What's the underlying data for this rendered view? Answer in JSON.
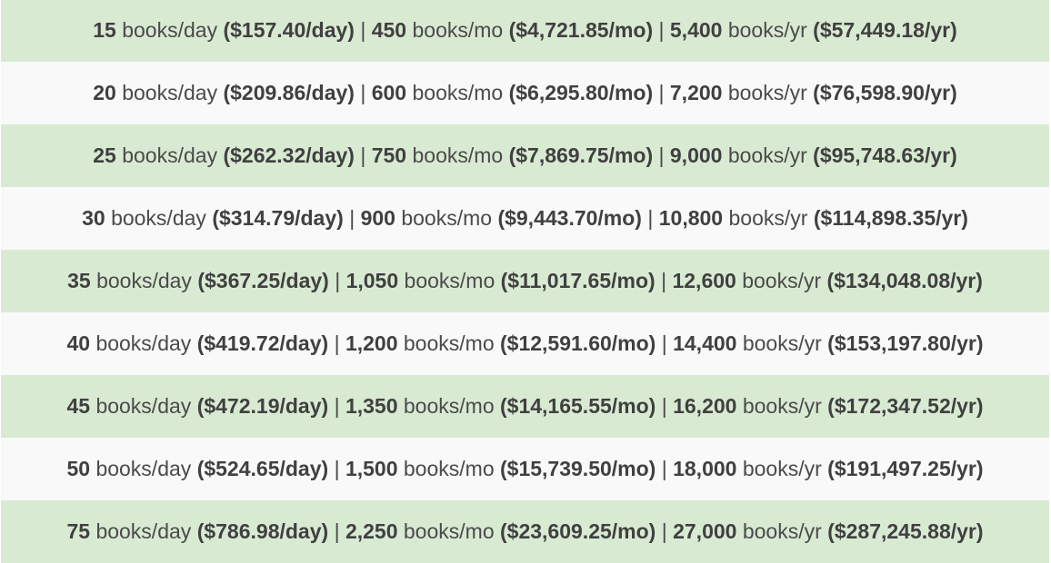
{
  "colors": {
    "green_row": "#d9ead3",
    "light_row": "#f9f9f9",
    "text": "#4a4a4a"
  },
  "rows": [
    {
      "day_count": "15",
      "day_unit": "books/day",
      "day_price": "($157.40/day)",
      "mo_count": "450",
      "mo_unit": "books/mo",
      "mo_price": "($4,721.85/mo)",
      "yr_count": "5,400",
      "yr_unit": "books/yr",
      "yr_price": "($57,449.18/yr)"
    },
    {
      "day_count": "20",
      "day_unit": "books/day",
      "day_price": "($209.86/day)",
      "mo_count": "600",
      "mo_unit": "books/mo",
      "mo_price": "($6,295.80/mo)",
      "yr_count": "7,200",
      "yr_unit": "books/yr",
      "yr_price": "($76,598.90/yr)"
    },
    {
      "day_count": "25",
      "day_unit": "books/day",
      "day_price": "($262.32/day)",
      "mo_count": "750",
      "mo_unit": "books/mo",
      "mo_price": "($7,869.75/mo)",
      "yr_count": "9,000",
      "yr_unit": "books/yr",
      "yr_price": "($95,748.63/yr)"
    },
    {
      "day_count": "30",
      "day_unit": "books/day",
      "day_price": "($314.79/day)",
      "mo_count": "900",
      "mo_unit": "books/mo",
      "mo_price": "($9,443.70/mo)",
      "yr_count": "10,800",
      "yr_unit": "books/yr",
      "yr_price": "($114,898.35/yr)"
    },
    {
      "day_count": "35",
      "day_unit": "books/day",
      "day_price": "($367.25/day)",
      "mo_count": "1,050",
      "mo_unit": "books/mo",
      "mo_price": "($11,017.65/mo)",
      "yr_count": "12,600",
      "yr_unit": "books/yr",
      "yr_price": "($134,048.08/yr)"
    },
    {
      "day_count": "40",
      "day_unit": "books/day",
      "day_price": "($419.72/day)",
      "mo_count": "1,200",
      "mo_unit": "books/mo",
      "mo_price": "($12,591.60/mo)",
      "yr_count": "14,400",
      "yr_unit": "books/yr",
      "yr_price": "($153,197.80/yr)"
    },
    {
      "day_count": "45",
      "day_unit": "books/day",
      "day_price": "($472.19/day)",
      "mo_count": "1,350",
      "mo_unit": "books/mo",
      "mo_price": "($14,165.55/mo)",
      "yr_count": "16,200",
      "yr_unit": "books/yr",
      "yr_price": "($172,347.52/yr)"
    },
    {
      "day_count": "50",
      "day_unit": "books/day",
      "day_price": "($524.65/day)",
      "mo_count": "1,500",
      "mo_unit": "books/mo",
      "mo_price": "($15,739.50/mo)",
      "yr_count": "18,000",
      "yr_unit": "books/yr",
      "yr_price": "($191,497.25/yr)"
    },
    {
      "day_count": "75",
      "day_unit": "books/day",
      "day_price": "($786.98/day)",
      "mo_count": "2,250",
      "mo_unit": "books/mo",
      "mo_price": "($23,609.25/mo)",
      "yr_count": "27,000",
      "yr_unit": "books/yr",
      "yr_price": "($287,245.88/yr)"
    }
  ],
  "separator": "|"
}
